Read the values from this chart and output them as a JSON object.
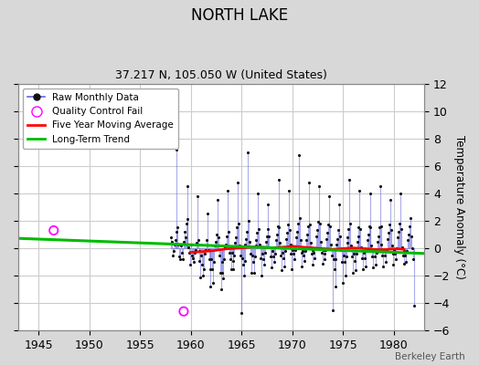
{
  "title": "NORTH LAKE",
  "subtitle": "37.217 N, 105.050 W (United States)",
  "ylabel_right": "Temperature Anomaly (°C)",
  "watermark": "Berkeley Earth",
  "xlim": [
    1943,
    1983
  ],
  "ylim": [
    -6,
    12
  ],
  "yticks": [
    -6,
    -4,
    -2,
    0,
    2,
    4,
    6,
    8,
    10,
    12
  ],
  "xticks": [
    1945,
    1950,
    1955,
    1960,
    1965,
    1970,
    1975,
    1980
  ],
  "outer_bg": "#d8d8d8",
  "plot_bg": "#ffffff",
  "line_color": "#6666dd",
  "line_alpha": 0.55,
  "marker_color": "#111111",
  "moving_avg_color": "#ff0000",
  "trend_color": "#00bb00",
  "qc_fail_color": "#ff00ff",
  "grid_color": "#cccccc",
  "raw_monthly": [
    [
      1958.042,
      0.8
    ],
    [
      1958.125,
      0.5
    ],
    [
      1958.208,
      -0.5
    ],
    [
      1958.292,
      -0.2
    ],
    [
      1958.375,
      0.3
    ],
    [
      1958.458,
      0.6
    ],
    [
      1958.542,
      1.2
    ],
    [
      1958.625,
      7.2
    ],
    [
      1958.708,
      1.5
    ],
    [
      1958.792,
      0.3
    ],
    [
      1958.875,
      -0.6
    ],
    [
      1958.958,
      -0.8
    ],
    [
      1959.042,
      0.2
    ],
    [
      1959.125,
      -0.3
    ],
    [
      1959.208,
      -0.8
    ],
    [
      1959.292,
      0.5
    ],
    [
      1959.375,
      1.2
    ],
    [
      1959.458,
      0.8
    ],
    [
      1959.542,
      1.8
    ],
    [
      1959.625,
      4.5
    ],
    [
      1959.708,
      2.1
    ],
    [
      1959.792,
      0.1
    ],
    [
      1959.875,
      -0.3
    ],
    [
      1959.958,
      -1.2
    ],
    [
      1960.042,
      0.3
    ],
    [
      1960.125,
      -0.5
    ],
    [
      1960.208,
      -0.7
    ],
    [
      1960.292,
      -1.0
    ],
    [
      1960.375,
      -0.3
    ],
    [
      1960.458,
      -0.1
    ],
    [
      1960.542,
      0.4
    ],
    [
      1960.625,
      3.8
    ],
    [
      1960.708,
      0.6
    ],
    [
      1960.792,
      -0.2
    ],
    [
      1960.875,
      -0.9
    ],
    [
      1960.958,
      -2.1
    ],
    [
      1961.042,
      -0.5
    ],
    [
      1961.125,
      -1.2
    ],
    [
      1961.208,
      -2.0
    ],
    [
      1961.292,
      -1.5
    ],
    [
      1961.375,
      -0.4
    ],
    [
      1961.458,
      -0.1
    ],
    [
      1961.542,
      0.6
    ],
    [
      1961.625,
      2.5
    ],
    [
      1961.708,
      -0.1
    ],
    [
      1961.792,
      -0.8
    ],
    [
      1961.875,
      -1.5
    ],
    [
      1961.958,
      -2.8
    ],
    [
      1962.042,
      -0.8
    ],
    [
      1962.125,
      -1.5
    ],
    [
      1962.208,
      -2.5
    ],
    [
      1962.292,
      -1.0
    ],
    [
      1962.375,
      0.2
    ],
    [
      1962.458,
      0.5
    ],
    [
      1962.542,
      1.0
    ],
    [
      1962.625,
      3.5
    ],
    [
      1962.708,
      0.8
    ],
    [
      1962.792,
      -0.5
    ],
    [
      1962.875,
      -1.8
    ],
    [
      1962.958,
      -3.0
    ],
    [
      1963.042,
      -1.0
    ],
    [
      1963.125,
      -1.8
    ],
    [
      1963.208,
      -2.2
    ],
    [
      1963.292,
      -0.8
    ],
    [
      1963.375,
      0.1
    ],
    [
      1963.458,
      0.3
    ],
    [
      1963.542,
      0.9
    ],
    [
      1963.625,
      4.2
    ],
    [
      1963.708,
      1.2
    ],
    [
      1963.792,
      -0.3
    ],
    [
      1963.875,
      -0.8
    ],
    [
      1963.958,
      -1.5
    ],
    [
      1964.042,
      -0.3
    ],
    [
      1964.125,
      -0.9
    ],
    [
      1964.208,
      -1.5
    ],
    [
      1964.292,
      -0.5
    ],
    [
      1964.375,
      0.4
    ],
    [
      1964.458,
      0.8
    ],
    [
      1964.542,
      1.5
    ],
    [
      1964.625,
      4.8
    ],
    [
      1964.708,
      1.8
    ],
    [
      1964.792,
      0.2
    ],
    [
      1964.875,
      -0.5
    ],
    [
      1964.958,
      -4.7
    ],
    [
      1965.042,
      -0.7
    ],
    [
      1965.125,
      -1.2
    ],
    [
      1965.208,
      -2.0
    ],
    [
      1965.292,
      -0.9
    ],
    [
      1965.375,
      0.3
    ],
    [
      1965.458,
      0.7
    ],
    [
      1965.542,
      1.2
    ],
    [
      1965.625,
      7.0
    ],
    [
      1965.708,
      2.0
    ],
    [
      1965.792,
      0.5
    ],
    [
      1965.875,
      -0.4
    ],
    [
      1965.958,
      -1.8
    ],
    [
      1966.042,
      -0.5
    ],
    [
      1966.125,
      -1.0
    ],
    [
      1966.208,
      -1.8
    ],
    [
      1966.292,
      -0.6
    ],
    [
      1966.375,
      0.2
    ],
    [
      1966.458,
      0.6
    ],
    [
      1966.542,
      1.1
    ],
    [
      1966.625,
      4.0
    ],
    [
      1966.708,
      1.4
    ],
    [
      1966.792,
      0.3
    ],
    [
      1966.875,
      -0.7
    ],
    [
      1966.958,
      -2.0
    ],
    [
      1967.042,
      -0.4
    ],
    [
      1967.125,
      -0.8
    ],
    [
      1967.208,
      -1.2
    ],
    [
      1967.292,
      -0.3
    ],
    [
      1967.375,
      0.5
    ],
    [
      1967.458,
      0.9
    ],
    [
      1967.542,
      1.4
    ],
    [
      1967.625,
      3.2
    ],
    [
      1967.708,
      0.9
    ],
    [
      1967.792,
      0.1
    ],
    [
      1967.875,
      -0.6
    ],
    [
      1967.958,
      -1.4
    ],
    [
      1968.042,
      -0.2
    ],
    [
      1968.125,
      -0.6
    ],
    [
      1968.208,
      -1.0
    ],
    [
      1968.292,
      -0.4
    ],
    [
      1968.375,
      0.6
    ],
    [
      1968.458,
      1.0
    ],
    [
      1968.542,
      1.6
    ],
    [
      1968.625,
      5.0
    ],
    [
      1968.708,
      1.5
    ],
    [
      1968.792,
      0.4
    ],
    [
      1968.875,
      -0.5
    ],
    [
      1968.958,
      -1.6
    ],
    [
      1969.042,
      -0.3
    ],
    [
      1969.125,
      -0.7
    ],
    [
      1969.208,
      -1.3
    ],
    [
      1969.292,
      -0.2
    ],
    [
      1969.375,
      0.7
    ],
    [
      1969.458,
      1.1
    ],
    [
      1969.542,
      1.7
    ],
    [
      1969.625,
      4.2
    ],
    [
      1969.708,
      1.3
    ],
    [
      1969.792,
      0.3
    ],
    [
      1969.875,
      -0.4
    ],
    [
      1969.958,
      -1.5
    ],
    [
      1970.042,
      -0.1
    ],
    [
      1970.125,
      -0.4
    ],
    [
      1970.208,
      -0.8
    ],
    [
      1970.292,
      -0.1
    ],
    [
      1970.375,
      0.8
    ],
    [
      1970.458,
      1.2
    ],
    [
      1970.542,
      1.8
    ],
    [
      1970.625,
      6.8
    ],
    [
      1970.708,
      2.2
    ],
    [
      1970.792,
      0.6
    ],
    [
      1970.875,
      -0.3
    ],
    [
      1970.958,
      -1.3
    ],
    [
      1971.042,
      -0.2
    ],
    [
      1971.125,
      -0.5
    ],
    [
      1971.208,
      -0.9
    ],
    [
      1971.292,
      -0.2
    ],
    [
      1971.375,
      0.6
    ],
    [
      1971.458,
      1.0
    ],
    [
      1971.542,
      1.6
    ],
    [
      1971.625,
      4.8
    ],
    [
      1971.708,
      1.7
    ],
    [
      1971.792,
      0.4
    ],
    [
      1971.875,
      -0.4
    ],
    [
      1971.958,
      -1.2
    ],
    [
      1972.042,
      -0.1
    ],
    [
      1972.125,
      -0.3
    ],
    [
      1972.208,
      -0.7
    ],
    [
      1972.292,
      0.0
    ],
    [
      1972.375,
      0.9
    ],
    [
      1972.458,
      1.3
    ],
    [
      1972.542,
      1.9
    ],
    [
      1972.625,
      4.5
    ],
    [
      1972.708,
      1.8
    ],
    [
      1972.792,
      0.5
    ],
    [
      1972.875,
      -0.3
    ],
    [
      1972.958,
      -1.1
    ],
    [
      1973.042,
      -0.1
    ],
    [
      1973.125,
      -0.4
    ],
    [
      1973.208,
      -0.8
    ],
    [
      1973.292,
      -0.1
    ],
    [
      1973.375,
      0.7
    ],
    [
      1973.458,
      1.1
    ],
    [
      1973.542,
      1.7
    ],
    [
      1973.625,
      3.8
    ],
    [
      1973.708,
      1.6
    ],
    [
      1973.792,
      0.3
    ],
    [
      1973.875,
      -0.5
    ],
    [
      1973.958,
      -4.5
    ],
    [
      1974.042,
      -0.8
    ],
    [
      1974.125,
      -1.5
    ],
    [
      1974.208,
      -2.8
    ],
    [
      1974.292,
      -0.8
    ],
    [
      1974.375,
      0.3
    ],
    [
      1974.458,
      0.7
    ],
    [
      1974.542,
      1.3
    ],
    [
      1974.625,
      3.2
    ],
    [
      1974.708,
      0.9
    ],
    [
      1974.792,
      -0.1
    ],
    [
      1974.875,
      -1.0
    ],
    [
      1974.958,
      -2.5
    ],
    [
      1975.042,
      -0.5
    ],
    [
      1975.125,
      -1.0
    ],
    [
      1975.208,
      -2.0
    ],
    [
      1975.292,
      -0.6
    ],
    [
      1975.375,
      0.4
    ],
    [
      1975.458,
      0.8
    ],
    [
      1975.542,
      1.4
    ],
    [
      1975.625,
      5.0
    ],
    [
      1975.708,
      1.8
    ],
    [
      1975.792,
      0.2
    ],
    [
      1975.875,
      -0.6
    ],
    [
      1975.958,
      -1.8
    ],
    [
      1976.042,
      -0.4
    ],
    [
      1976.125,
      -0.9
    ],
    [
      1976.208,
      -1.6
    ],
    [
      1976.292,
      -0.4
    ],
    [
      1976.375,
      0.5
    ],
    [
      1976.458,
      0.9
    ],
    [
      1976.542,
      1.5
    ],
    [
      1976.625,
      4.2
    ],
    [
      1976.708,
      1.4
    ],
    [
      1976.792,
      0.1
    ],
    [
      1976.875,
      -0.7
    ],
    [
      1976.958,
      -1.5
    ],
    [
      1977.042,
      -0.3
    ],
    [
      1977.125,
      -0.7
    ],
    [
      1977.208,
      -1.3
    ],
    [
      1977.292,
      -0.2
    ],
    [
      1977.375,
      0.6
    ],
    [
      1977.458,
      1.0
    ],
    [
      1977.542,
      1.6
    ],
    [
      1977.625,
      4.0
    ],
    [
      1977.708,
      1.5
    ],
    [
      1977.792,
      0.2
    ],
    [
      1977.875,
      -0.6
    ],
    [
      1977.958,
      -1.4
    ],
    [
      1978.042,
      -0.2
    ],
    [
      1978.125,
      -0.6
    ],
    [
      1978.208,
      -1.2
    ],
    [
      1978.292,
      -0.3
    ],
    [
      1978.375,
      0.5
    ],
    [
      1978.458,
      0.9
    ],
    [
      1978.542,
      1.5
    ],
    [
      1978.625,
      4.5
    ],
    [
      1978.708,
      1.6
    ],
    [
      1978.792,
      0.3
    ],
    [
      1978.875,
      -0.5
    ],
    [
      1978.958,
      -1.3
    ],
    [
      1979.042,
      -0.2
    ],
    [
      1979.125,
      -0.5
    ],
    [
      1979.208,
      -1.0
    ],
    [
      1979.292,
      -0.1
    ],
    [
      1979.375,
      0.7
    ],
    [
      1979.458,
      1.1
    ],
    [
      1979.542,
      1.7
    ],
    [
      1979.625,
      3.5
    ],
    [
      1979.708,
      1.3
    ],
    [
      1979.792,
      0.2
    ],
    [
      1979.875,
      -0.4
    ],
    [
      1979.958,
      -1.2
    ],
    [
      1980.042,
      -0.1
    ],
    [
      1980.125,
      -0.4
    ],
    [
      1980.208,
      -0.8
    ],
    [
      1980.292,
      0.0
    ],
    [
      1980.375,
      0.8
    ],
    [
      1980.458,
      1.2
    ],
    [
      1980.542,
      1.8
    ],
    [
      1980.625,
      4.0
    ],
    [
      1980.708,
      1.4
    ],
    [
      1980.792,
      0.1
    ],
    [
      1980.875,
      -0.5
    ],
    [
      1980.958,
      -1.1
    ],
    [
      1981.042,
      -0.2
    ],
    [
      1981.125,
      -0.5
    ],
    [
      1981.208,
      -1.0
    ],
    [
      1981.292,
      -0.2
    ],
    [
      1981.375,
      0.6
    ],
    [
      1981.458,
      1.0
    ],
    [
      1981.542,
      1.6
    ],
    [
      1981.625,
      2.2
    ],
    [
      1981.708,
      0.9
    ],
    [
      1981.792,
      0.0
    ],
    [
      1981.875,
      -0.8
    ],
    [
      1981.958,
      -4.2
    ]
  ],
  "qc_fail_points": [
    [
      1946.5,
      1.3
    ],
    [
      1959.3,
      -4.6
    ]
  ],
  "moving_avg": [
    [
      1960.0,
      -0.3
    ],
    [
      1960.5,
      -0.28
    ],
    [
      1961.0,
      -0.25
    ],
    [
      1961.5,
      -0.22
    ],
    [
      1962.0,
      -0.2
    ],
    [
      1962.5,
      -0.15
    ],
    [
      1963.0,
      -0.1
    ],
    [
      1963.5,
      -0.05
    ],
    [
      1964.0,
      -0.02
    ],
    [
      1964.5,
      0.0
    ],
    [
      1965.0,
      0.02
    ],
    [
      1965.5,
      0.05
    ],
    [
      1966.0,
      0.08
    ],
    [
      1966.5,
      0.1
    ],
    [
      1967.0,
      0.08
    ],
    [
      1967.5,
      0.05
    ],
    [
      1968.0,
      0.03
    ],
    [
      1968.5,
      0.05
    ],
    [
      1969.0,
      0.08
    ],
    [
      1969.5,
      0.1
    ],
    [
      1970.0,
      0.15
    ],
    [
      1970.5,
      0.12
    ],
    [
      1971.0,
      0.08
    ],
    [
      1971.5,
      0.05
    ],
    [
      1972.0,
      0.03
    ],
    [
      1972.5,
      0.0
    ],
    [
      1973.0,
      -0.03
    ],
    [
      1973.5,
      -0.05
    ],
    [
      1974.0,
      -0.08
    ],
    [
      1974.5,
      -0.05
    ],
    [
      1975.0,
      -0.02
    ],
    [
      1975.5,
      0.0
    ],
    [
      1976.0,
      0.02
    ],
    [
      1976.5,
      0.0
    ],
    [
      1977.0,
      -0.02
    ],
    [
      1977.5,
      -0.05
    ],
    [
      1978.0,
      -0.08
    ],
    [
      1978.5,
      -0.1
    ],
    [
      1979.0,
      -0.1
    ],
    [
      1979.5,
      -0.08
    ],
    [
      1980.0,
      -0.05
    ],
    [
      1980.5,
      -0.05
    ],
    [
      1981.0,
      -0.08
    ]
  ],
  "trend_line": [
    [
      1943,
      0.72
    ],
    [
      1983,
      -0.38
    ]
  ]
}
